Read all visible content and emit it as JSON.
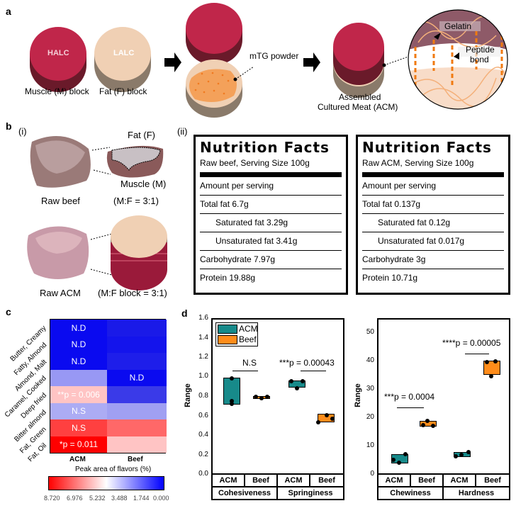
{
  "panel_a": {
    "label": "a",
    "muscle_block_text": "HALC",
    "fat_block_text": "LALC",
    "muscle_caption": "Muscle (M)  block",
    "fat_caption": "Fat (F) block",
    "mtg_label": "mTG powder",
    "acm_caption_line1": "Assembled",
    "acm_caption_line2": "Cultured Meat (ACM)",
    "gelatin_label": "Gelatin",
    "peptide_label_line1": "Peptide",
    "peptide_label_line2": "bond",
    "colors": {
      "muscle": "#c0264a",
      "fat": "#f0d0b4",
      "mtg": "#f4a15a",
      "arrow": "#000000"
    }
  },
  "panel_b": {
    "label": "b",
    "sub_i": "(i)",
    "sub_ii": "(ii)",
    "fat_label": "Fat (F)",
    "muscle_label": "Muscle (M)",
    "raw_beef_caption": "Raw beef",
    "beef_ratio": "(M:F = 3:1)",
    "raw_acm_caption": "Raw ACM",
    "acm_ratio": "(M:F block = 3:1)",
    "nutrition": [
      {
        "title": "Nutrition Facts",
        "subtitle": "Raw beef, Serving  Size 100g",
        "rows": [
          {
            "text": "Amount per serving",
            "indent": false
          },
          {
            "text": "Total fat  6.7g",
            "indent": false
          },
          {
            "text": "Saturated fat  3.29g",
            "indent": true
          },
          {
            "text": "Unsaturated fat 3.41g",
            "indent": true
          },
          {
            "text": "Carbohydrate   7.97g",
            "indent": false
          },
          {
            "text": "Protein  19.88g",
            "indent": false
          }
        ]
      },
      {
        "title": "Nutrition Facts",
        "subtitle": "Raw ACM, Serving  Size 100g",
        "rows": [
          {
            "text": "Amount per serving",
            "indent": false
          },
          {
            "text": "Total fat  0.137g",
            "indent": false
          },
          {
            "text": "Saturated fat  0.12g",
            "indent": true
          },
          {
            "text": "Unsaturated fat 0.017g",
            "indent": true
          },
          {
            "text": "Carbohydrate   3g",
            "indent": false
          },
          {
            "text": "Protein  10.71g",
            "indent": false
          }
        ]
      }
    ]
  },
  "panel_c": {
    "label": "c",
    "xlabel": "Peak area of flavors (%)",
    "columns": [
      "ACM",
      "Beef"
    ],
    "rows": [
      "Butter, Creamy",
      "Fatty, Almond",
      "Almond, Malt",
      "Caramel, Cooked",
      "Deep fried",
      "Bitter almond",
      "Fat, Green",
      "Fat, Oil"
    ],
    "cells": [
      [
        {
          "color": "#0a0af0",
          "text": "N.D"
        },
        {
          "color": "#1a1ae8",
          "text": ""
        }
      ],
      [
        {
          "color": "#0a0af0",
          "text": "N.D"
        },
        {
          "color": "#1414ec",
          "text": ""
        }
      ],
      [
        {
          "color": "#0a0af0",
          "text": "N.D"
        },
        {
          "color": "#1e1eea",
          "text": ""
        }
      ],
      [
        {
          "color": "#9898f4",
          "text": ""
        },
        {
          "color": "#0a0af0",
          "text": "N.D"
        }
      ],
      [
        {
          "color": "#ffc4c4",
          "text": "**p = 0.006"
        },
        {
          "color": "#3a3ae8",
          "text": ""
        }
      ],
      [
        {
          "color": "#acacf4",
          "text": "N.S"
        },
        {
          "color": "#a0a0f2",
          "text": ""
        }
      ],
      [
        {
          "color": "#ff4040",
          "text": "N.S"
        },
        {
          "color": "#ff6868",
          "text": ""
        }
      ],
      [
        {
          "color": "#ff0000",
          "text": "*p = 0.011"
        },
        {
          "color": "#ffc4c4",
          "text": ""
        }
      ]
    ],
    "colorbar_ticks": [
      "8.720",
      "6.976",
      "5.232",
      "3.488",
      "1.744",
      "0.000"
    ]
  },
  "chart_data": [
    {
      "type": "heatmap",
      "title": "Peak area of flavors (%)",
      "x": [
        "ACM",
        "Beef"
      ],
      "y": [
        "Butter, Creamy",
        "Fatty, Almond",
        "Almond, Malt",
        "Caramel, Cooked",
        "Deep fried",
        "Bitter almond",
        "Fat, Green",
        "Fat, Oil"
      ],
      "annotations": {
        "ACM": [
          "N.D",
          "N.D",
          "N.D",
          "",
          "**p = 0.006",
          "N.S",
          "N.S",
          "*p = 0.011"
        ],
        "Beef": [
          "",
          "",
          "",
          "N.D",
          "",
          "",
          "",
          ""
        ]
      },
      "colorbar_range": [
        0.0,
        8.72
      ]
    },
    {
      "type": "box",
      "ylabel": "Range",
      "ylim": [
        0.0,
        1.6
      ],
      "yticks": [
        0.0,
        0.2,
        0.4,
        0.6,
        0.8,
        1.0,
        1.2,
        1.4,
        1.6
      ],
      "categories": [
        "Cohesiveness",
        "Springiness"
      ],
      "series": [
        {
          "name": "ACM",
          "color": "#178a8a",
          "values": {
            "Cohesiveness": [
              0.67,
              0.78,
              0.96
            ],
            "Springiness": [
              0.89,
              0.95,
              0.96
            ]
          }
        },
        {
          "name": "Beef",
          "color": "#ff8c1a",
          "values": {
            "Cohesiveness": [
              0.79,
              0.8,
              0.81
            ],
            "Springiness": [
              0.54,
              0.59,
              0.62
            ]
          }
        }
      ],
      "annotations": [
        "N.S",
        "***p = 0.00043"
      ]
    },
    {
      "type": "box",
      "ylabel": "Range",
      "ylim": [
        0,
        55
      ],
      "yticks": [
        0,
        10,
        20,
        30,
        40,
        50
      ],
      "categories": [
        "Chewiness",
        "Hardness"
      ],
      "series": [
        {
          "name": "ACM",
          "color": "#178a8a",
          "values": {
            "Chewiness": [
              4.5,
              5.0,
              7.5
            ],
            "Hardness": [
              6.8,
              7.3,
              8.2
            ]
          }
        },
        {
          "name": "Beef",
          "color": "#ff8c1a",
          "values": {
            "Chewiness": [
              17.3,
              17.6,
              19.3
            ],
            "Hardness": [
              35.2,
              40.0,
              40.5
            ]
          }
        }
      ],
      "annotations": [
        "***p = 0.0004",
        "****p = 0.00005"
      ]
    }
  ],
  "panel_d": {
    "label": "d",
    "ylabel": "Range",
    "legend": [
      "ACM",
      "Beef"
    ],
    "left": {
      "yticks": [
        "1.6",
        "1.4",
        "1.2",
        "1.0",
        "0.8",
        "0.6",
        "0.4",
        "0.2",
        "0.0"
      ],
      "groups": [
        "ACM",
        "Beef",
        "ACM",
        "Beef"
      ],
      "categories": [
        "Cohesiveness",
        "Springiness"
      ],
      "sig": [
        "N.S",
        "***p = 0.00043"
      ]
    },
    "right": {
      "yticks": [
        "50",
        "40",
        "30",
        "20",
        "10",
        "0"
      ],
      "groups": [
        "ACM",
        "Beef",
        "ACM",
        "Beef"
      ],
      "categories": [
        "Chewiness",
        "Hardness"
      ],
      "sig": [
        "***p = 0.0004",
        "****p = 0.00005"
      ]
    }
  }
}
